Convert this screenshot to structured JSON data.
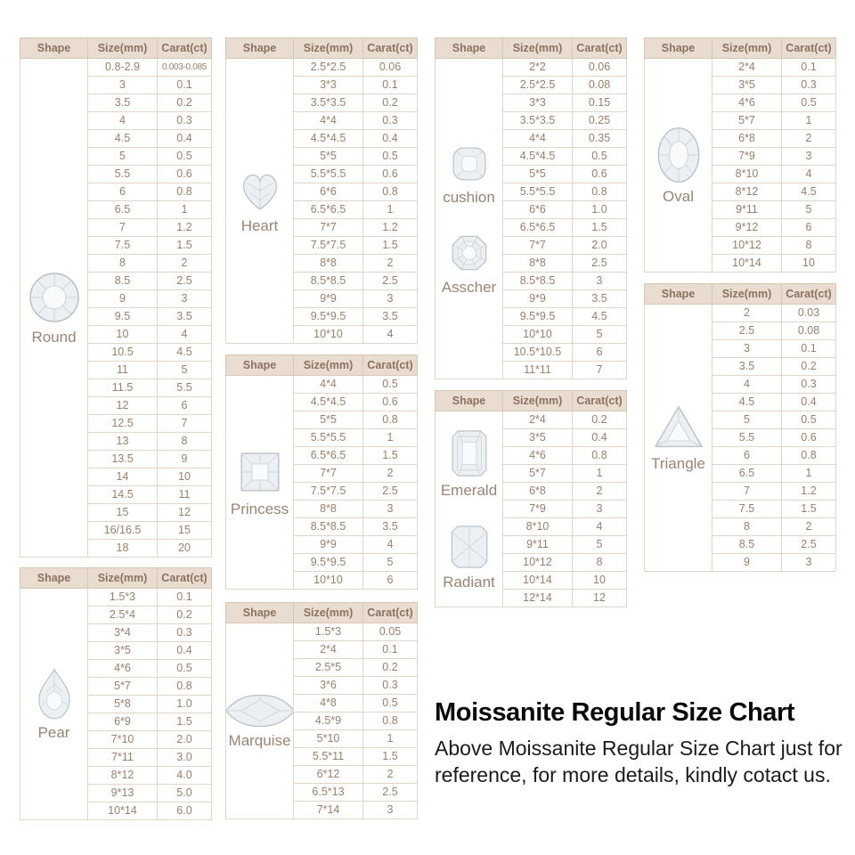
{
  "caption": {
    "title": "Moissanite Regular Size Chart",
    "body": "Above Moissanite Regular Size Chart just for reference, for more details, kindly cotact us."
  },
  "columns": {
    "shape": "Shape",
    "size": "Size(mm)",
    "carat": "Carat(ct)"
  },
  "colors": {
    "header_bg": "#e9dcd0",
    "border": "#ddcaba",
    "cell_text": "#9b7f6b",
    "title_text": "#0a0a0a"
  },
  "tables": {
    "round": {
      "shapes": [
        {
          "label": "Round",
          "icon": "round-gem-icon"
        }
      ],
      "rows": [
        [
          "0.8-2.9",
          "0.003-0.085"
        ],
        [
          "3",
          "0.1"
        ],
        [
          "3.5",
          "0.2"
        ],
        [
          "4",
          "0.3"
        ],
        [
          "4.5",
          "0.4"
        ],
        [
          "5",
          "0.5"
        ],
        [
          "5.5",
          "0.6"
        ],
        [
          "6",
          "0.8"
        ],
        [
          "6.5",
          "1"
        ],
        [
          "7",
          "1.2"
        ],
        [
          "7.5",
          "1.5"
        ],
        [
          "8",
          "2"
        ],
        [
          "8.5",
          "2.5"
        ],
        [
          "9",
          "3"
        ],
        [
          "9.5",
          "3.5"
        ],
        [
          "10",
          "4"
        ],
        [
          "10.5",
          "4.5"
        ],
        [
          "11",
          "5"
        ],
        [
          "11.5",
          "5.5"
        ],
        [
          "12",
          "6"
        ],
        [
          "12.5",
          "7"
        ],
        [
          "13",
          "8"
        ],
        [
          "13.5",
          "9"
        ],
        [
          "14",
          "10"
        ],
        [
          "14.5",
          "11"
        ],
        [
          "15",
          "12"
        ],
        [
          "16/16.5",
          "15"
        ],
        [
          "18",
          "20"
        ]
      ]
    },
    "pear": {
      "shapes": [
        {
          "label": "Pear",
          "icon": "pear-gem-icon"
        }
      ],
      "rows": [
        [
          "1.5*3",
          "0.1"
        ],
        [
          "2.5*4",
          "0.2"
        ],
        [
          "3*4",
          "0.3"
        ],
        [
          "3*5",
          "0.4"
        ],
        [
          "4*6",
          "0.5"
        ],
        [
          "5*7",
          "0.8"
        ],
        [
          "5*8",
          "1.0"
        ],
        [
          "6*9",
          "1.5"
        ],
        [
          "7*10",
          "2.0"
        ],
        [
          "7*11",
          "3.0"
        ],
        [
          "8*12",
          "4.0"
        ],
        [
          "9*13",
          "5.0"
        ],
        [
          "10*14",
          "6.0"
        ]
      ]
    },
    "heart": {
      "shapes": [
        {
          "label": "Heart",
          "icon": "heart-gem-icon"
        }
      ],
      "rows": [
        [
          "2.5*2.5",
          "0.06"
        ],
        [
          "3*3",
          "0.1"
        ],
        [
          "3.5*3.5",
          "0.2"
        ],
        [
          "4*4",
          "0.3"
        ],
        [
          "4.5*4.5",
          "0.4"
        ],
        [
          "5*5",
          "0.5"
        ],
        [
          "5.5*5.5",
          "0.6"
        ],
        [
          "6*6",
          "0.8"
        ],
        [
          "6.5*6.5",
          "1"
        ],
        [
          "7*7",
          "1.2"
        ],
        [
          "7.5*7.5",
          "1.5"
        ],
        [
          "8*8",
          "2"
        ],
        [
          "8.5*8.5",
          "2.5"
        ],
        [
          "9*9",
          "3"
        ],
        [
          "9.5*9.5",
          "3.5"
        ],
        [
          "10*10",
          "4"
        ]
      ]
    },
    "princess": {
      "shapes": [
        {
          "label": "Princess",
          "icon": "princess-gem-icon"
        }
      ],
      "rows": [
        [
          "4*4",
          "0.5"
        ],
        [
          "4.5*4.5",
          "0.6"
        ],
        [
          "5*5",
          "0.8"
        ],
        [
          "5.5*5.5",
          "1"
        ],
        [
          "6.5*6.5",
          "1.5"
        ],
        [
          "7*7",
          "2"
        ],
        [
          "7.5*7.5",
          "2.5"
        ],
        [
          "8*8",
          "3"
        ],
        [
          "8.5*8.5",
          "3.5"
        ],
        [
          "9*9",
          "4"
        ],
        [
          "9.5*9.5",
          "5"
        ],
        [
          "10*10",
          "6"
        ]
      ]
    },
    "marquise": {
      "shapes": [
        {
          "label": "Marquise",
          "icon": "marquise-gem-icon"
        }
      ],
      "rows": [
        [
          "1.5*3",
          "0.05"
        ],
        [
          "2*4",
          "0.1"
        ],
        [
          "2.5*5",
          "0.2"
        ],
        [
          "3*6",
          "0.3"
        ],
        [
          "4*8",
          "0.5"
        ],
        [
          "4.5*9",
          "0.8"
        ],
        [
          "5*10",
          "1"
        ],
        [
          "5.5*11",
          "1.5"
        ],
        [
          "6*12",
          "2"
        ],
        [
          "6.5*13",
          "2.5"
        ],
        [
          "7*14",
          "3"
        ]
      ]
    },
    "cushion_asscher": {
      "shapes": [
        {
          "label": "cushion",
          "icon": "cushion-gem-icon"
        },
        {
          "label": "Asscher",
          "icon": "asscher-gem-icon"
        }
      ],
      "rows": [
        [
          "2*2",
          "0.06"
        ],
        [
          "2.5*2.5",
          "0.08"
        ],
        [
          "3*3",
          "0.15"
        ],
        [
          "3.5*3.5",
          "0.25"
        ],
        [
          "4*4",
          "0.35"
        ],
        [
          "4.5*4.5",
          "0.5"
        ],
        [
          "5*5",
          "0.6"
        ],
        [
          "5.5*5.5",
          "0.8"
        ],
        [
          "6*6",
          "1.0"
        ],
        [
          "6.5*6.5",
          "1.5"
        ],
        [
          "7*7",
          "2.0"
        ],
        [
          "8*8",
          "2.5"
        ],
        [
          "8.5*8.5",
          "3"
        ],
        [
          "9*9",
          "3.5"
        ],
        [
          "9.5*9.5",
          "4.5"
        ],
        [
          "10*10",
          "5"
        ],
        [
          "10.5*10.5",
          "6"
        ],
        [
          "11*11",
          "7"
        ]
      ]
    },
    "emerald_radiant": {
      "shapes": [
        {
          "label": "Emerald",
          "icon": "emerald-gem-icon"
        },
        {
          "label": "Radiant",
          "icon": "radiant-gem-icon"
        }
      ],
      "rows": [
        [
          "2*4",
          "0.2"
        ],
        [
          "3*5",
          "0.4"
        ],
        [
          "4*6",
          "0.8"
        ],
        [
          "5*7",
          "1"
        ],
        [
          "6*8",
          "2"
        ],
        [
          "7*9",
          "3"
        ],
        [
          "8*10",
          "4"
        ],
        [
          "9*11",
          "5"
        ],
        [
          "10*12",
          "8"
        ],
        [
          "10*14",
          "10"
        ],
        [
          "12*14",
          "12"
        ]
      ]
    },
    "oval": {
      "shapes": [
        {
          "label": "Oval",
          "icon": "oval-gem-icon"
        }
      ],
      "rows": [
        [
          "2*4",
          "0.1"
        ],
        [
          "3*5",
          "0.3"
        ],
        [
          "4*6",
          "0.5"
        ],
        [
          "5*7",
          "1"
        ],
        [
          "6*8",
          "2"
        ],
        [
          "7*9",
          "3"
        ],
        [
          "8*10",
          "4"
        ],
        [
          "8*12",
          "4.5"
        ],
        [
          "9*11",
          "5"
        ],
        [
          "9*12",
          "6"
        ],
        [
          "10*12",
          "8"
        ],
        [
          "10*14",
          "10"
        ]
      ]
    },
    "triangle": {
      "shapes": [
        {
          "label": "Triangle",
          "icon": "triangle-gem-icon"
        }
      ],
      "rows": [
        [
          "2",
          "0.03"
        ],
        [
          "2.5",
          "0.08"
        ],
        [
          "3",
          "0.1"
        ],
        [
          "3.5",
          "0.2"
        ],
        [
          "4",
          "0.3"
        ],
        [
          "4.5",
          "0.4"
        ],
        [
          "5",
          "0.5"
        ],
        [
          "5.5",
          "0.6"
        ],
        [
          "6",
          "0.8"
        ],
        [
          "6.5",
          "1"
        ],
        [
          "7",
          "1.2"
        ],
        [
          "7.5",
          "1.5"
        ],
        [
          "8",
          "2"
        ],
        [
          "8.5",
          "2.5"
        ],
        [
          "9",
          "3"
        ]
      ]
    }
  }
}
